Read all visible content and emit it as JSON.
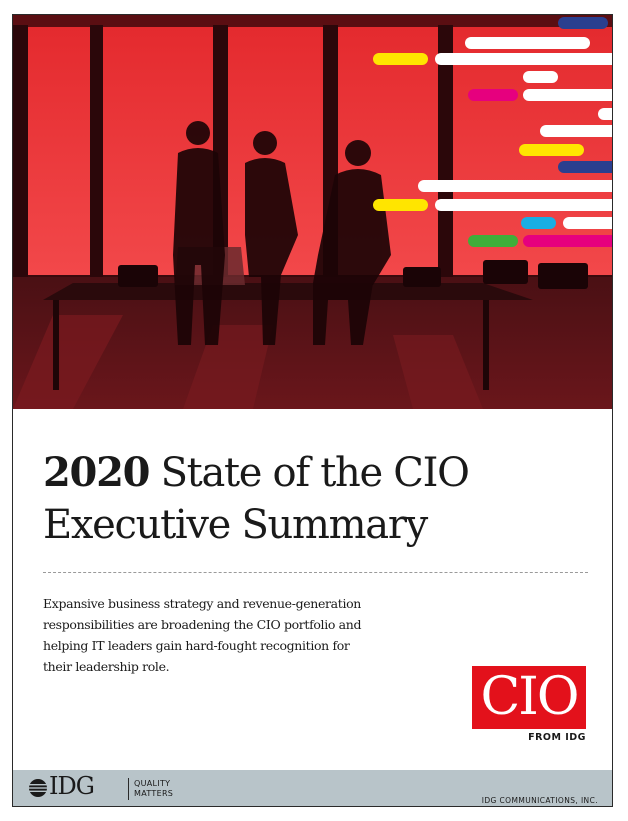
{
  "cover": {
    "title_year": "2020",
    "title_line1_rest": "State of the CIO",
    "title_line2": "Executive Summary",
    "summary": "Expansive business strategy and revenue-generation responsibilities are broadening the CIO portfolio and helping IT leaders gain hard-fought recognition for their leadership role."
  },
  "brand": {
    "cio_logo_text": "CIO",
    "from_idg": "FROM IDG",
    "idg_wordmark": "IDG",
    "tagline_line1": "QUALITY",
    "tagline_line2": "MATTERS",
    "company": "IDG COMMUNICATIONS, INC."
  },
  "colors": {
    "hero_red": "#e3111b",
    "logo_red": "#e3111b",
    "footer_band": "#b8c4c9",
    "stripe_yellow": "#ffe500",
    "stripe_magenta": "#e6007e",
    "stripe_blue": "#2a3f8f",
    "stripe_cyan": "#19aee4",
    "stripe_green": "#3fae3a"
  }
}
